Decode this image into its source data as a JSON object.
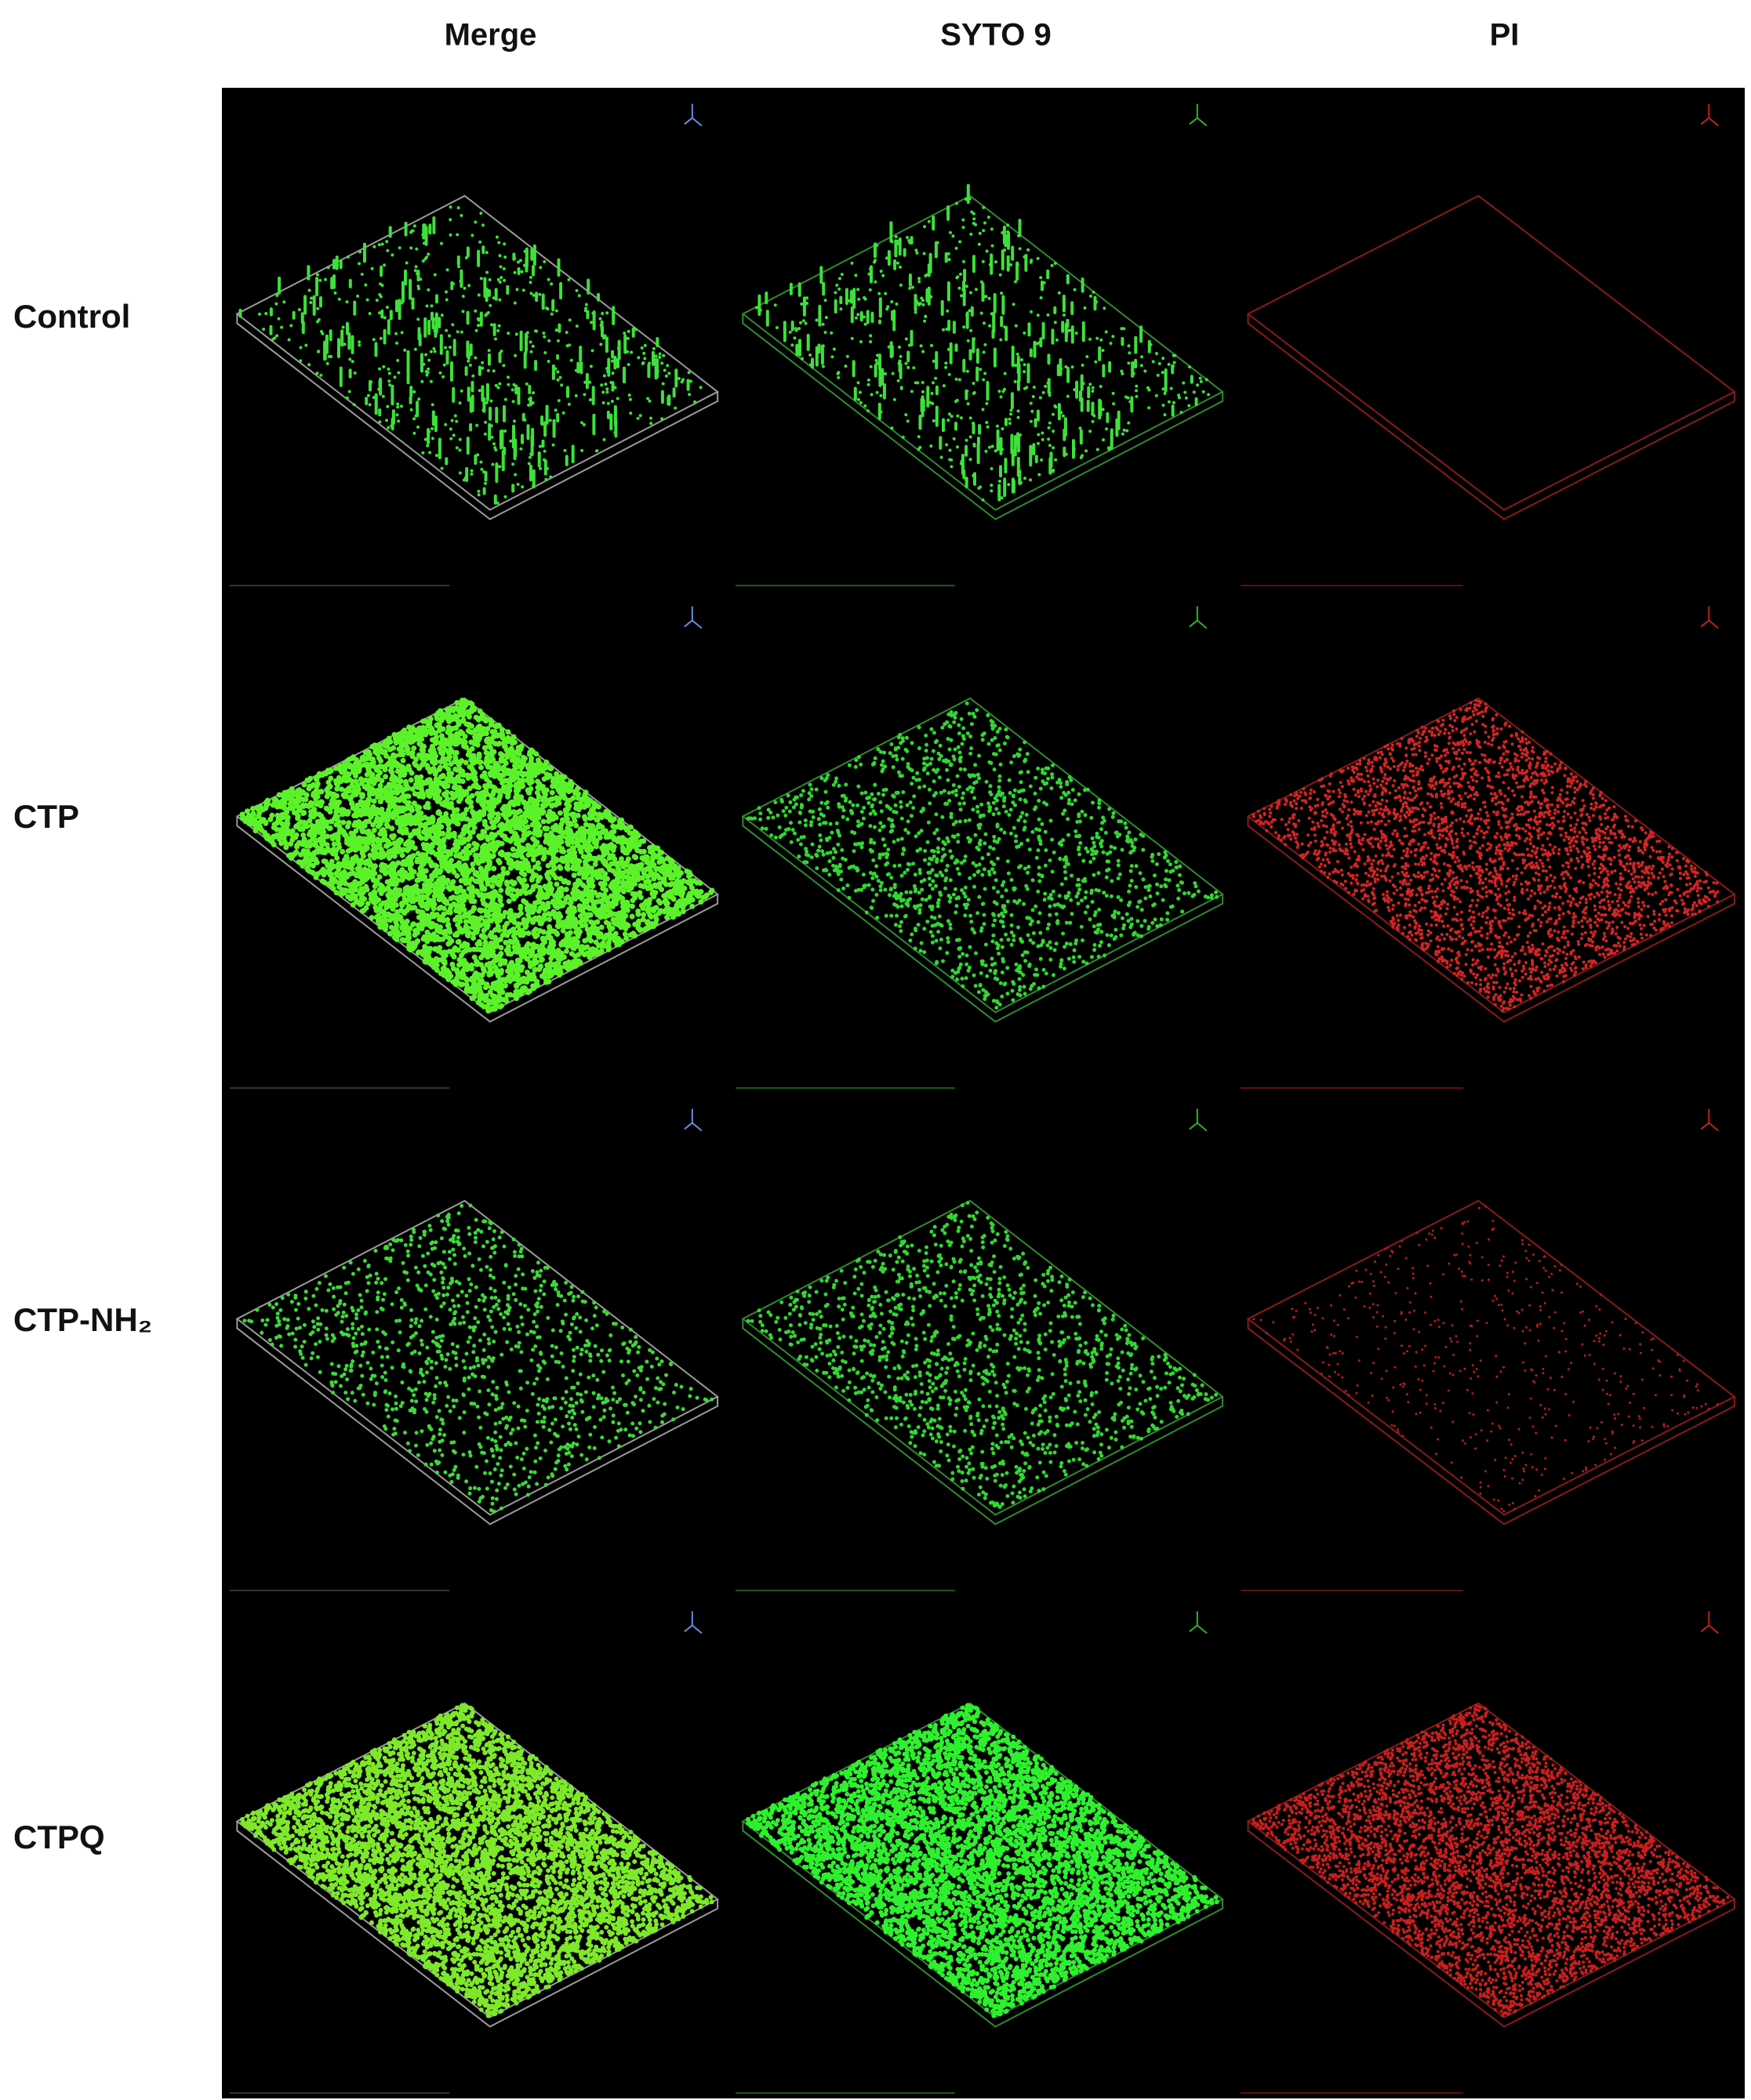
{
  "columns": [
    "Merge",
    "SYTO 9",
    "PI"
  ],
  "rows": [
    "Control",
    "CTP",
    "CTP-NH₂",
    "CTPQ"
  ]
}
